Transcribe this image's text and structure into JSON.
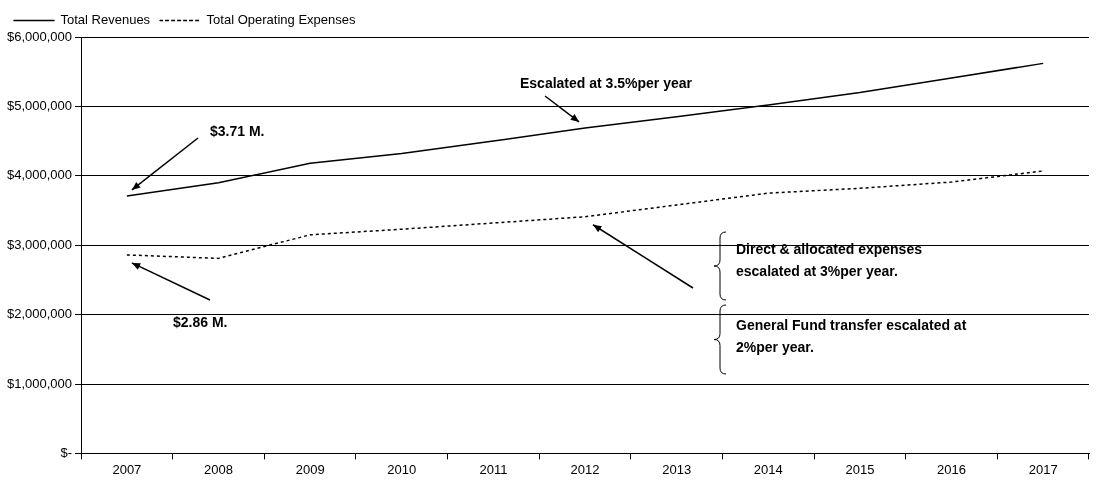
{
  "chart_data": {
    "type": "line",
    "categories": [
      "2007",
      "2008",
      "2009",
      "2010",
      "2011",
      "2012",
      "2013",
      "2014",
      "2015",
      "2016",
      "2017"
    ],
    "series": [
      {
        "name": "Total Revenues",
        "color": "#000000",
        "line_style": "solid",
        "values": [
          3710000,
          3900000,
          4180000,
          4320000,
          4500000,
          4690000,
          4850000,
          5020000,
          5200000,
          5410000,
          5620000
        ]
      },
      {
        "name": "Total Operating Expenses",
        "color": "#000000",
        "line_style": "dotted",
        "values": [
          2860000,
          2810000,
          3150000,
          3230000,
          3320000,
          3410000,
          3580000,
          3750000,
          3820000,
          3910000,
          4070000
        ]
      }
    ],
    "ylim": [
      0,
      6000000
    ],
    "yticks": [
      {
        "value": 0,
        "label": "$-"
      },
      {
        "value": 1000000,
        "label": "$1,000,000"
      },
      {
        "value": 2000000,
        "label": "$2,000,000"
      },
      {
        "value": 3000000,
        "label": "$3,000,000"
      },
      {
        "value": 4000000,
        "label": "$4,000,000"
      },
      {
        "value": 5000000,
        "label": "$5,000,000"
      },
      {
        "value": 6000000,
        "label": "$6,000,000"
      }
    ],
    "grid": "y",
    "legend": "top left",
    "marker": "none",
    "annotations": [
      "$3.71 M.",
      "$2.86 M.",
      "Escalated at 3.5%per year",
      "Direct & allocated expenses escalated at 3%per year.",
      "General Fund transfer escalated at 2%per year."
    ]
  }
}
